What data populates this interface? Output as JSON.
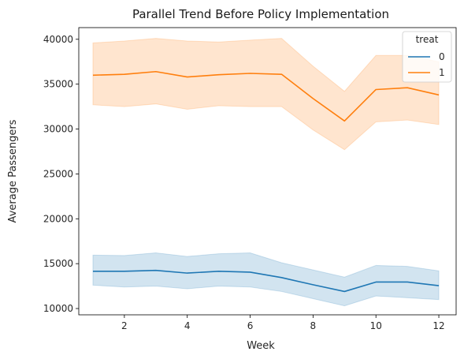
{
  "chart_data": {
    "type": "line",
    "title": "Parallel Trend Before Policy Implementation",
    "xlabel": "Week",
    "ylabel": "Average Passengers",
    "xlim": [
      0.55,
      12.55
    ],
    "ylim": [
      9300,
      41300
    ],
    "xticks": [
      2,
      4,
      6,
      8,
      10,
      12
    ],
    "yticks": [
      10000,
      15000,
      20000,
      25000,
      30000,
      35000,
      40000
    ],
    "grid": false,
    "legend": {
      "title": "treat",
      "placement": "top-right"
    },
    "x": [
      1,
      2,
      3,
      4,
      5,
      6,
      7,
      8,
      9,
      10,
      11,
      12
    ],
    "series": [
      {
        "name": "0",
        "color": "#1f77b4",
        "values": [
          14150,
          14150,
          14250,
          13950,
          14150,
          14050,
          13450,
          12650,
          11900,
          12950,
          12950,
          12550
        ],
        "ci_lower": [
          12600,
          12400,
          12500,
          12200,
          12500,
          12400,
          11900,
          11100,
          10300,
          11400,
          11200,
          11000
        ],
        "ci_upper": [
          15950,
          15900,
          16200,
          15800,
          16100,
          16200,
          15100,
          14300,
          13500,
          14800,
          14700,
          14200
        ]
      },
      {
        "name": "1",
        "color": "#ff7f0e",
        "values": [
          36000,
          36100,
          36400,
          35800,
          36050,
          36200,
          36100,
          33400,
          30900,
          34400,
          34600,
          33800
        ],
        "ci_lower": [
          32700,
          32500,
          32800,
          32200,
          32600,
          32500,
          32500,
          29900,
          27700,
          30800,
          31000,
          30500
        ],
        "ci_upper": [
          39600,
          39800,
          40100,
          39800,
          39700,
          39900,
          40100,
          37000,
          34200,
          38200,
          38200,
          37500
        ]
      }
    ]
  }
}
